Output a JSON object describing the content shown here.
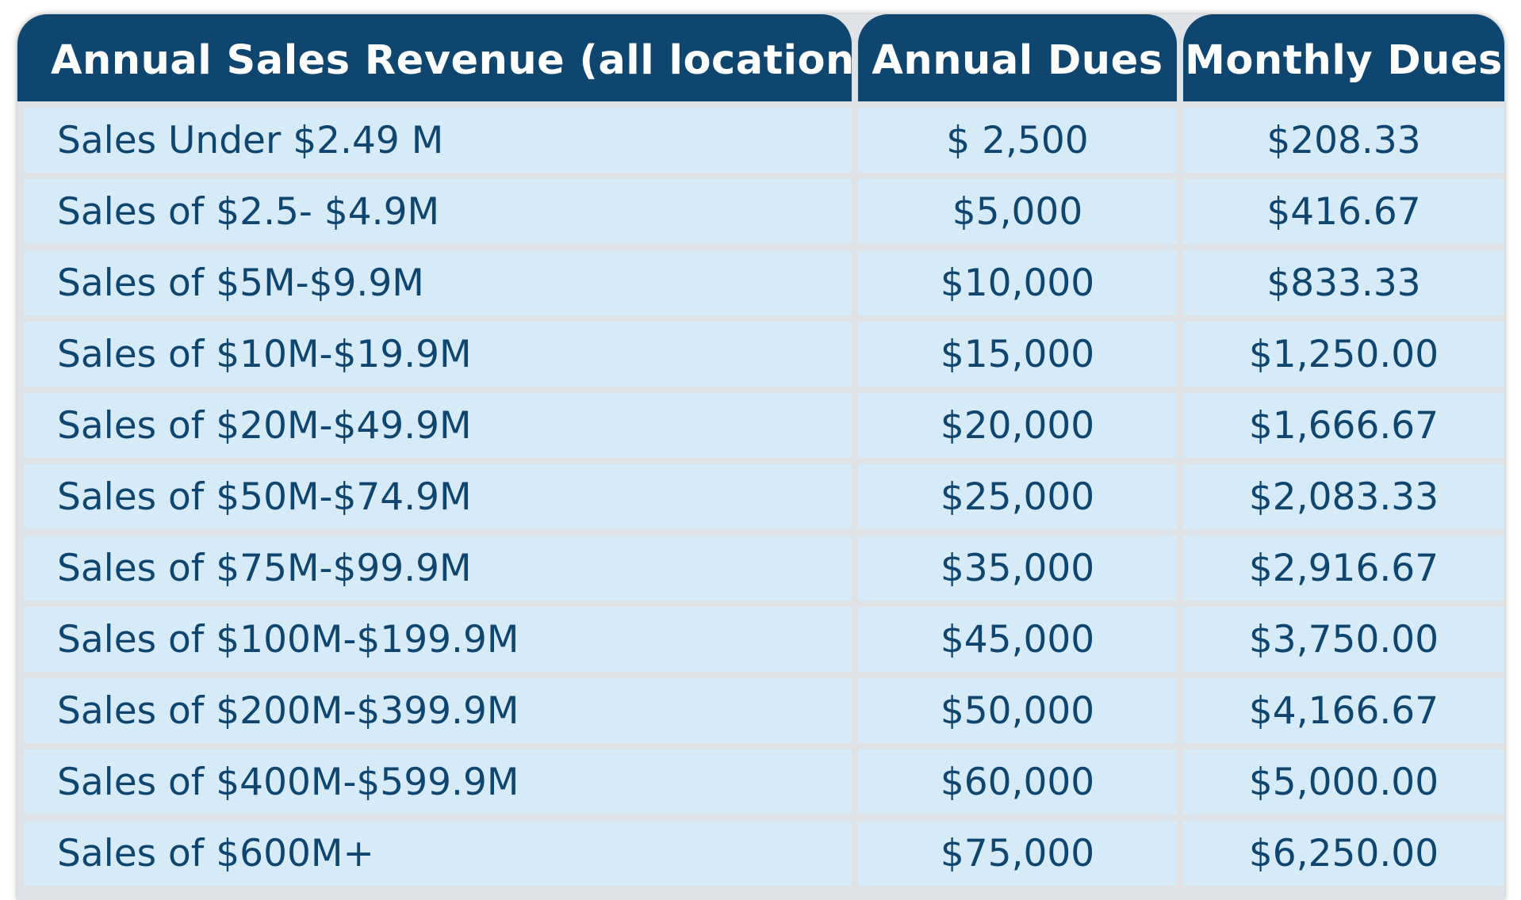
{
  "headers": {
    "revenue": "Annual Sales Revenue (all locations)",
    "annual": "Annual Dues",
    "monthly": "Monthly Dues"
  },
  "rows": [
    {
      "revenue": "Sales Under $2.49 M",
      "annual": "$ 2,500",
      "monthly": "$208.33"
    },
    {
      "revenue": "Sales of $2.5- $4.9M",
      "annual": "$5,000",
      "monthly": "$416.67"
    },
    {
      "revenue": "Sales of $5M-$9.9M",
      "annual": "$10,000",
      "monthly": "$833.33"
    },
    {
      "revenue": "Sales of $10M-$19.9M",
      "annual": "$15,000",
      "monthly": "$1,250.00"
    },
    {
      "revenue": "Sales of $20M-$49.9M",
      "annual": "$20,000",
      "monthly": "$1,666.67"
    },
    {
      "revenue": "Sales of $50M-$74.9M",
      "annual": "$25,000",
      "monthly": "$2,083.33"
    },
    {
      "revenue": "Sales of $75M-$99.9M",
      "annual": "$35,000",
      "monthly": "$2,916.67"
    },
    {
      "revenue": "Sales of $100M-$199.9M",
      "annual": "$45,000",
      "monthly": "$3,750.00"
    },
    {
      "revenue": "Sales of $200M-$399.9M",
      "annual": "$50,000",
      "monthly": "$4,166.67"
    },
    {
      "revenue": "Sales of $400M-$599.9M",
      "annual": "$60,000",
      "monthly": "$5,000.00"
    },
    {
      "revenue": "Sales of $600M+",
      "annual": "$75,000",
      "monthly": "$6,250.00"
    }
  ],
  "colors": {
    "header_bg": "#0f4670",
    "header_text": "#ffffff",
    "row_bg": "#d6eaf8",
    "row_text": "#0f4670",
    "footer_bg": "#9fd0ee"
  }
}
